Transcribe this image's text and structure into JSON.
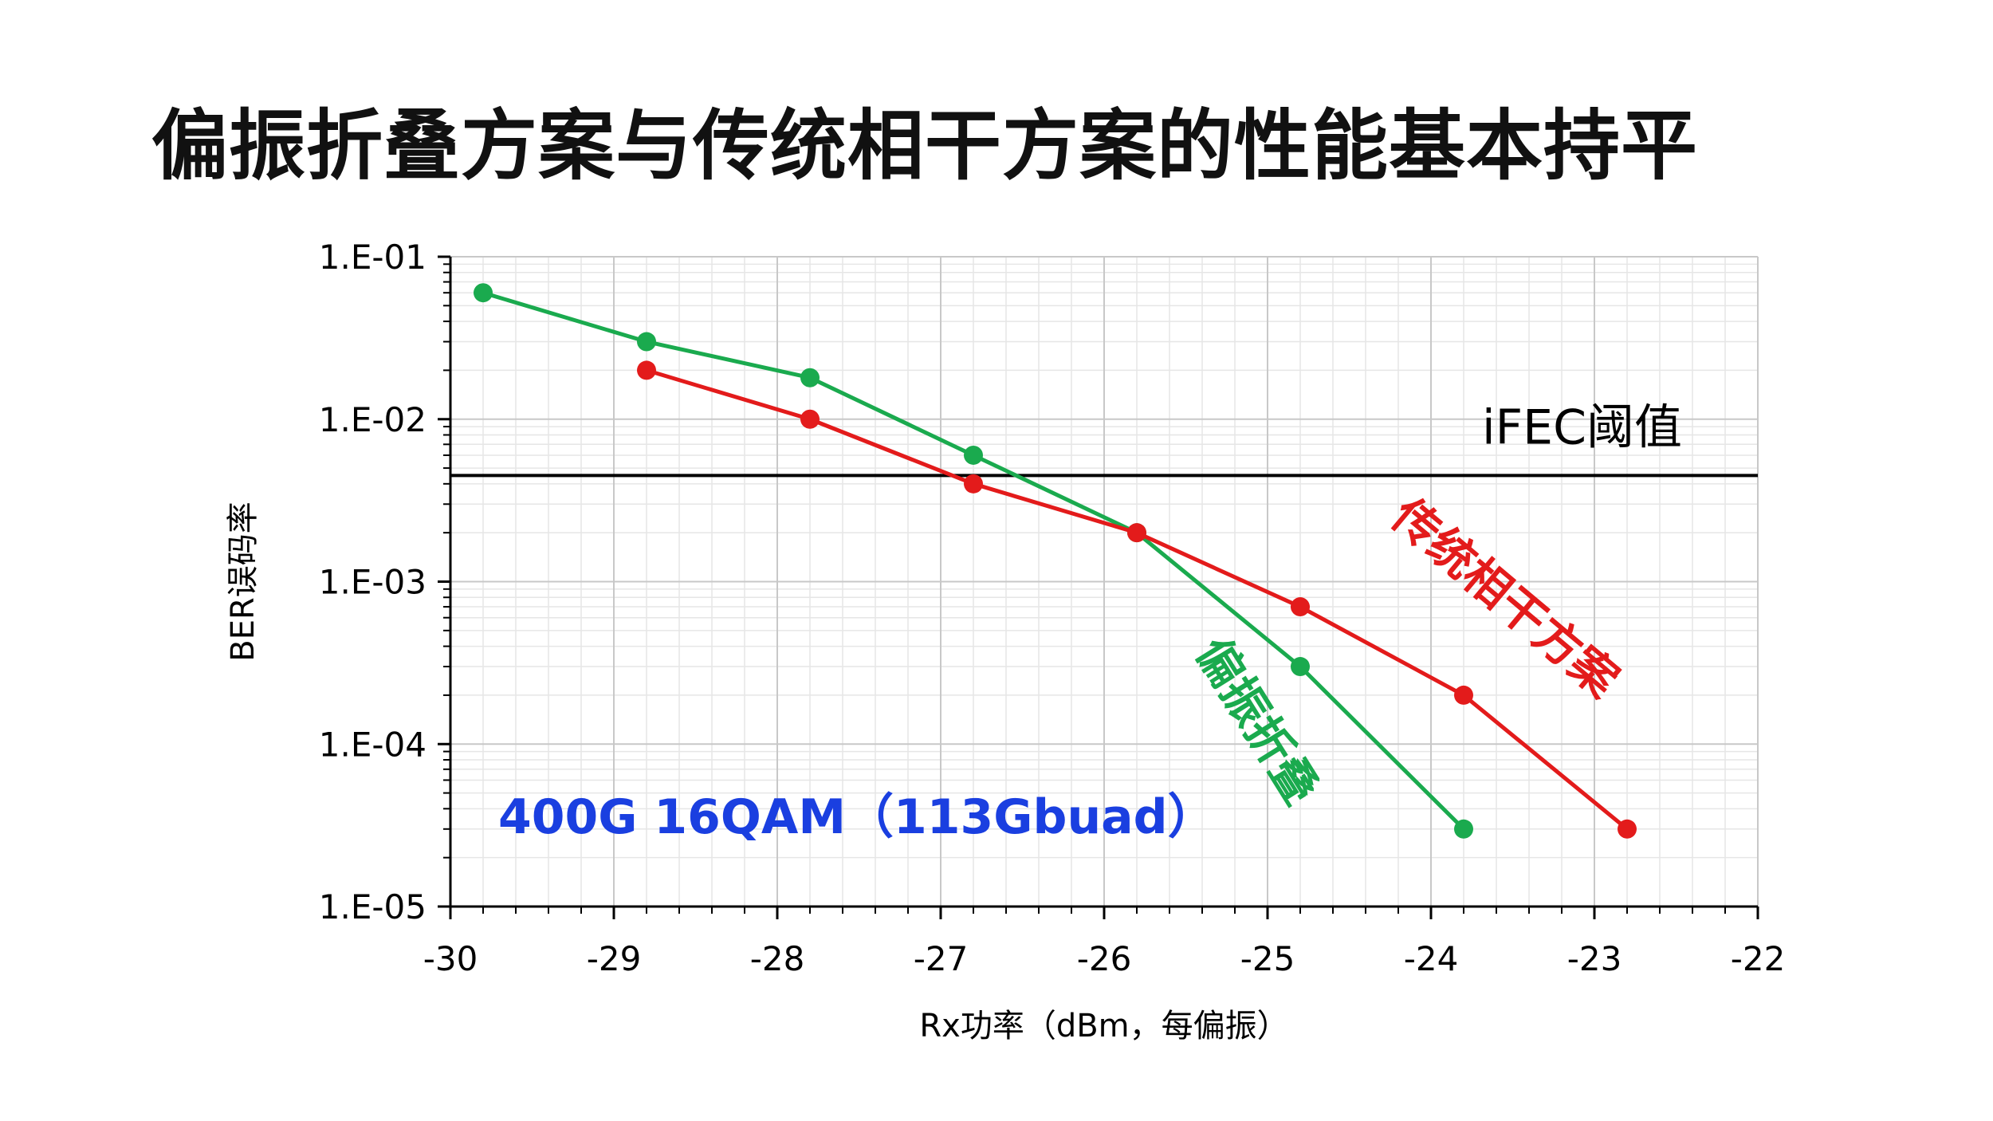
{
  "title": "偏振折叠方案与传统相干方案的性能基本持平",
  "chart_data": {
    "type": "line",
    "yscale": "log",
    "xlabel": "Rx功率（dBm，每偏振）",
    "ylabel": "BER误码率",
    "xlim": [
      -30,
      -22
    ],
    "ylim": [
      1e-05,
      0.1
    ],
    "xticks": [
      -30,
      -29,
      -28,
      -27,
      -26,
      -25,
      -24,
      -23,
      -22
    ],
    "xtick_labels": [
      "-30",
      "-29",
      "-28",
      "-27",
      "-26",
      "-25",
      "-24",
      "-23",
      "-22"
    ],
    "yticks": [
      0.1,
      0.01,
      0.001,
      0.0001,
      1e-05
    ],
    "ytick_labels": [
      "1.E-01",
      "1.E-02",
      "1.E-03",
      "1.E-04",
      "1.E-05"
    ],
    "grid": true,
    "series": [
      {
        "name": "偏振折叠",
        "color": "#1aaa4e",
        "x": [
          -29.8,
          -28.8,
          -27.8,
          -26.8,
          -25.8,
          -24.8,
          -23.8
        ],
        "y": [
          0.06,
          0.03,
          0.018,
          0.006,
          0.002,
          0.0003,
          3e-05
        ]
      },
      {
        "name": "传统相干方案",
        "color": "#e31b1b",
        "x": [
          -28.8,
          -27.8,
          -26.8,
          -25.8,
          -24.8,
          -23.8,
          -22.8
        ],
        "y": [
          0.02,
          0.01,
          0.004,
          0.002,
          0.0007,
          0.0002,
          3e-05
        ]
      }
    ],
    "threshold": {
      "label": "iFEC阈值",
      "value": 0.0045,
      "color": "#000000"
    },
    "annotations": [
      {
        "text": "400G 16QAM（113Gbuad）",
        "color": "#1a3fe0"
      }
    ]
  }
}
